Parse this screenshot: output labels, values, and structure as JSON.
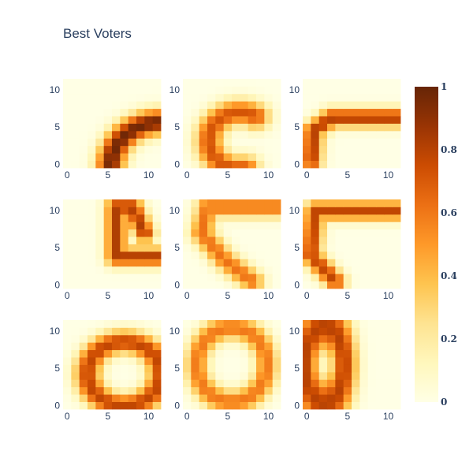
{
  "chart_data": {
    "type": "heatmap",
    "title": "Best Voters",
    "layout": "3x3 grid of heatmap subplots sharing one colorscale",
    "colorscale": {
      "name": "Oranges (YlOrBr-like)",
      "min": 0,
      "max": 1,
      "stops": [
        [
          0.0,
          "#ffffe5"
        ],
        [
          0.125,
          "#fff7bc"
        ],
        [
          0.25,
          "#fee391"
        ],
        [
          0.375,
          "#fec44f"
        ],
        [
          0.5,
          "#fe9929"
        ],
        [
          0.625,
          "#ec7014"
        ],
        [
          0.75,
          "#cc4c02"
        ],
        [
          0.875,
          "#993404"
        ],
        [
          1.0,
          "#662506"
        ]
      ],
      "ticks": [
        "0",
        "0.2",
        "0.4",
        "0.6",
        "0.8",
        "1"
      ]
    },
    "axes": {
      "x_range": [
        0,
        11
      ],
      "y_range": [
        0,
        11
      ],
      "x_ticks": [
        "0",
        "5",
        "10"
      ],
      "y_ticks": [
        "0",
        "5",
        "10"
      ]
    },
    "grid_size": 12,
    "panels": [
      {
        "id": "r1c1",
        "row": 1,
        "col": 1,
        "shape": "arc",
        "cx": 11.5,
        "cy": -0.5,
        "r": 6.2,
        "w": 1.2,
        "peak": 0.98,
        "start": 90,
        "end": 180
      },
      {
        "id": "r1c2",
        "row": 1,
        "col": 2,
        "shape": "arc",
        "cx": 6.5,
        "cy": 3.2,
        "r": 3.8,
        "w": 1.2,
        "peak": 0.72,
        "start": 60,
        "end": 280
      },
      {
        "id": "r1c3",
        "row": 1,
        "col": 3,
        "shape": "polyline",
        "pts": [
          [
            11,
            6.3
          ],
          [
            3,
            6.3
          ],
          [
            0.8,
            4.5
          ],
          [
            0.6,
            0.5
          ]
        ],
        "w": 0.9,
        "peak": 0.82
      },
      {
        "id": "r2c1",
        "row": 2,
        "col": 1,
        "shape": "polyline",
        "pts": [
          [
            11,
            3.8
          ],
          [
            6,
            3.8
          ],
          [
            6,
            10.5
          ],
          [
            8,
            10.5
          ],
          [
            9.5,
            7
          ]
        ],
        "w": 0.9,
        "peak": 0.82
      },
      {
        "id": "r2c2",
        "row": 2,
        "col": 2,
        "shape": "polyline",
        "pts": [
          [
            11,
            10.5
          ],
          [
            2.5,
            10.5
          ],
          [
            1.8,
            7
          ],
          [
            4.5,
            3.5
          ],
          [
            8,
            0.5
          ]
        ],
        "w": 1.0,
        "peak": 0.62
      },
      {
        "id": "r2c3",
        "row": 2,
        "col": 3,
        "shape": "polyline",
        "pts": [
          [
            11,
            10
          ],
          [
            1,
            10
          ],
          [
            0.5,
            4
          ],
          [
            3.5,
            0.5
          ]
        ],
        "w": 0.9,
        "peak": 0.78
      },
      {
        "id": "r3c1",
        "row": 3,
        "col": 1,
        "shape": "ellipse",
        "cx": 7,
        "cy": 4.3,
        "rx": 4.5,
        "ry": 4.3,
        "w": 1.1,
        "peak": 0.78
      },
      {
        "id": "r3c2",
        "row": 3,
        "col": 2,
        "shape": "ellipse",
        "cx": 5.5,
        "cy": 5.5,
        "rx": 4.3,
        "ry": 5,
        "w": 1.0,
        "peak": 0.6
      },
      {
        "id": "r3c3",
        "row": 3,
        "col": 3,
        "shape": "ellipse",
        "cx": 2.2,
        "cy": 5.5,
        "rx": 2.4,
        "ry": 5.2,
        "w": 1.1,
        "peak": 0.8
      }
    ]
  }
}
